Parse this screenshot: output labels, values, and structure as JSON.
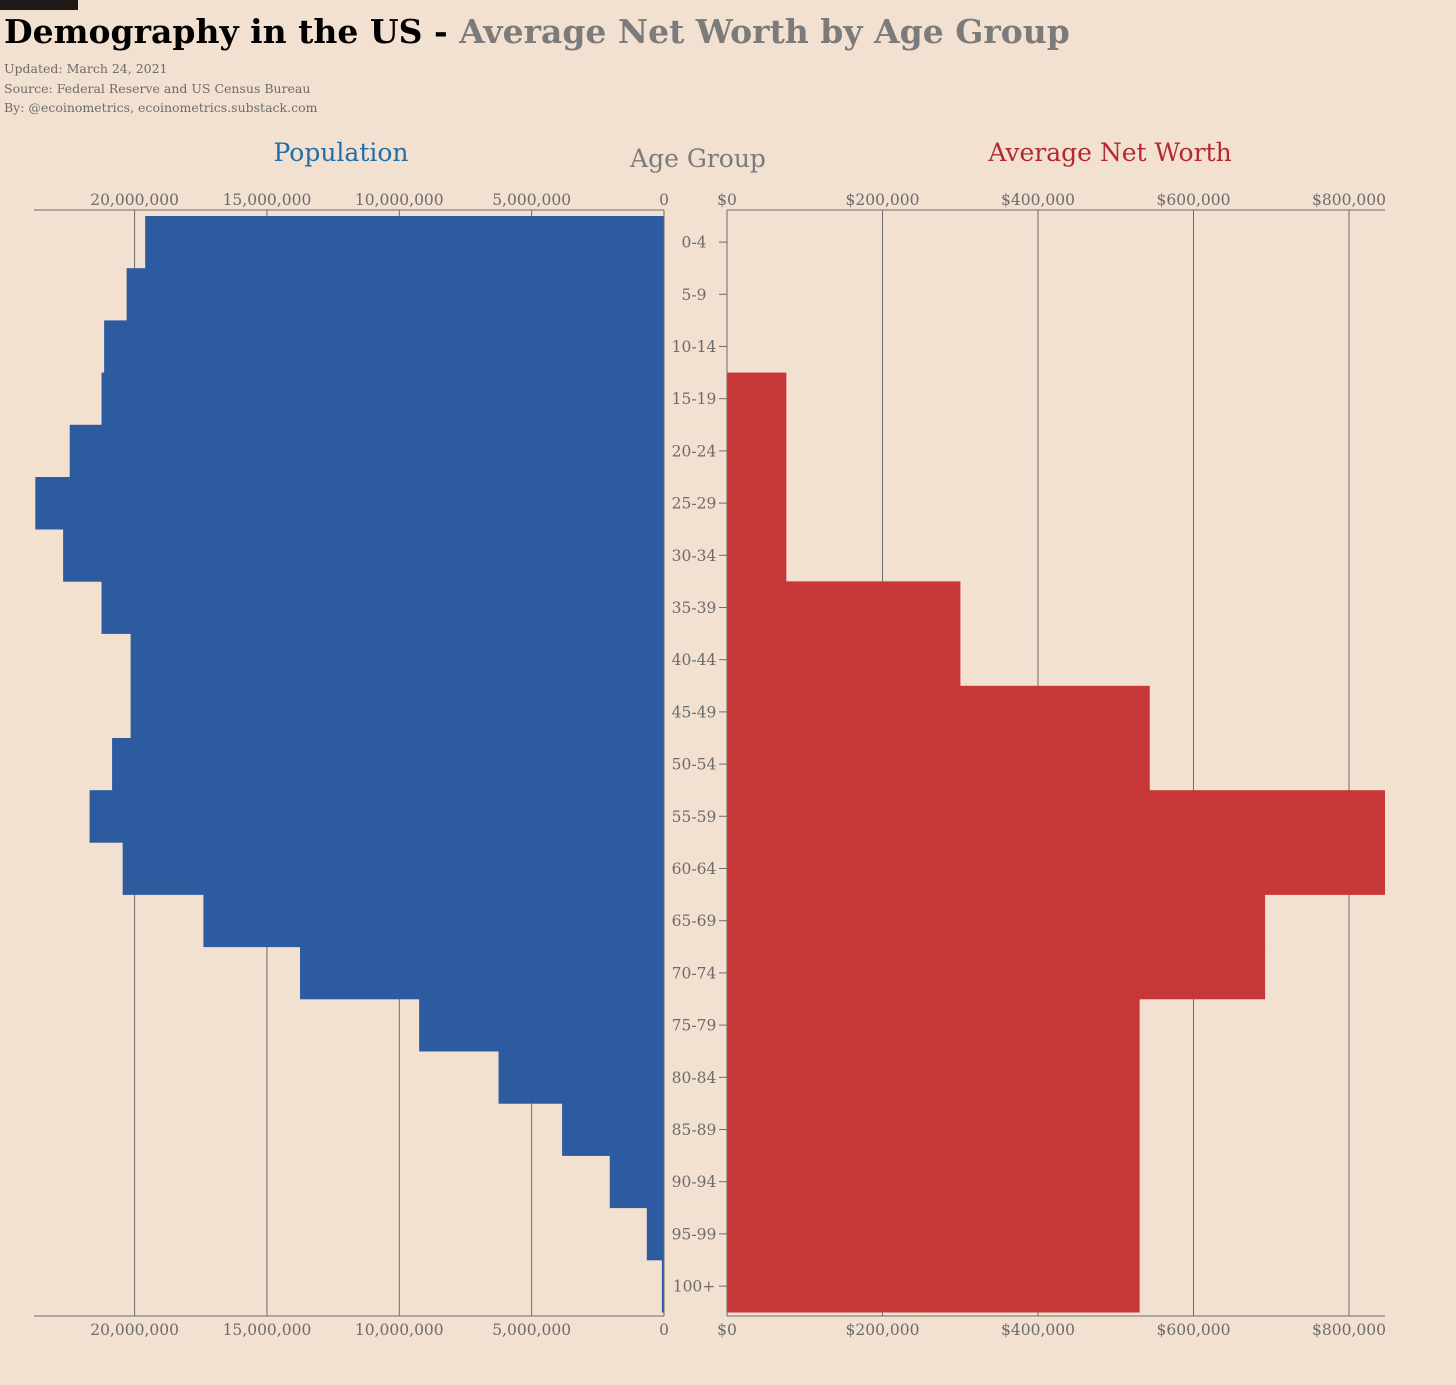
{
  "header": {
    "title_main": "Demography in the US - ",
    "title_accent": "Average Net Worth by Age Group",
    "updated": "Updated: March 24, 2021",
    "source": "Source: Federal Reserve and US Census Bureau",
    "byline": "By: @ecoinometrics, ecoinometrics.substack.com"
  },
  "colors": {
    "background": "#f2e0d0",
    "population_bar": "#2d5ba0",
    "population_title": "#1f6fa8",
    "networth_bar": "#c83737",
    "networth_title": "#b5282e",
    "axis": "#6c6c6c"
  },
  "chart_data": [
    {
      "type": "bar",
      "orientation": "horizontal",
      "direction": "right-to-left",
      "title": "Population",
      "categories": [
        "0-4",
        "5-9",
        "10-14",
        "15-19",
        "20-24",
        "25-29",
        "30-34",
        "35-39",
        "40-44",
        "45-49",
        "50-54",
        "55-59",
        "60-64",
        "65-69",
        "70-74",
        "75-79",
        "80-84",
        "85-89",
        "90-94",
        "95-99",
        "100+"
      ],
      "values": [
        19600000,
        20300000,
        21150000,
        21250000,
        22450000,
        23750000,
        22700000,
        21250000,
        20150000,
        20150000,
        20850000,
        21700000,
        20450000,
        17400000,
        13750000,
        9250000,
        6250000,
        3850000,
        2050000,
        650000,
        80000
      ],
      "xlim": [
        0,
        23800000
      ],
      "ticks": [
        0,
        5000000,
        10000000,
        15000000,
        20000000
      ],
      "tick_labels": [
        "0",
        "5,000,000",
        "10,000,000",
        "15,000,000",
        "20,000,000"
      ],
      "grid": true
    },
    {
      "type": "bar",
      "orientation": "horizontal",
      "title": "Average Net Worth",
      "categories": [
        "0-4",
        "5-9",
        "10-14",
        "15-19",
        "20-24",
        "25-29",
        "30-34",
        "35-39",
        "40-44",
        "45-49",
        "50-54",
        "55-59",
        "60-64",
        "65-69",
        "70-74",
        "75-79",
        "80-84",
        "85-89",
        "90-94",
        "95-99",
        "100+"
      ],
      "values": [
        0,
        0,
        0,
        76300,
        76300,
        76300,
        76300,
        300200,
        300200,
        543700,
        543700,
        846300,
        846300,
        692100,
        692100,
        530700,
        530700,
        530700,
        530700,
        530700,
        530700
      ],
      "xlim": [
        0,
        846300
      ],
      "ticks": [
        0,
        200000,
        400000,
        600000,
        800000
      ],
      "tick_labels": [
        "$0",
        "$200,000",
        "$400,000",
        "$600,000",
        "$800,000"
      ],
      "grid": true
    }
  ],
  "center_label": "Age Group"
}
